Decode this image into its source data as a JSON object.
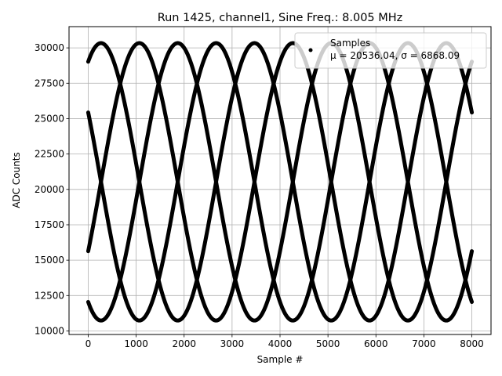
{
  "chart_data": {
    "type": "scatter",
    "title": "Run 1425, channel1, Sine Freq.: 8.005 MHz",
    "xlabel": "Sample #",
    "ylabel": "ADC Counts",
    "xlim": [
      -400,
      8400
    ],
    "ylim": [
      9750,
      31500
    ],
    "xticks": [
      0,
      1000,
      2000,
      3000,
      4000,
      5000,
      6000,
      7000,
      8000
    ],
    "yticks": [
      10000,
      12500,
      15000,
      17500,
      20000,
      22500,
      25000,
      27500,
      30000
    ],
    "grid": true,
    "legend": {
      "position": "top-right",
      "label": "Samples",
      "stats": "μ = 20536.04, σ = 6868.09",
      "marker_color": "#000000"
    },
    "series": [
      {
        "name": "Samples",
        "color": "#000000",
        "model": "A*sin(2*pi*x/period + phase) + offset",
        "amplitude": 9800,
        "offset": 20536,
        "period": 3200,
        "phases_deg": [
          150,
          240,
          330,
          60
        ],
        "x_range": [
          0,
          8000
        ]
      }
    ]
  }
}
